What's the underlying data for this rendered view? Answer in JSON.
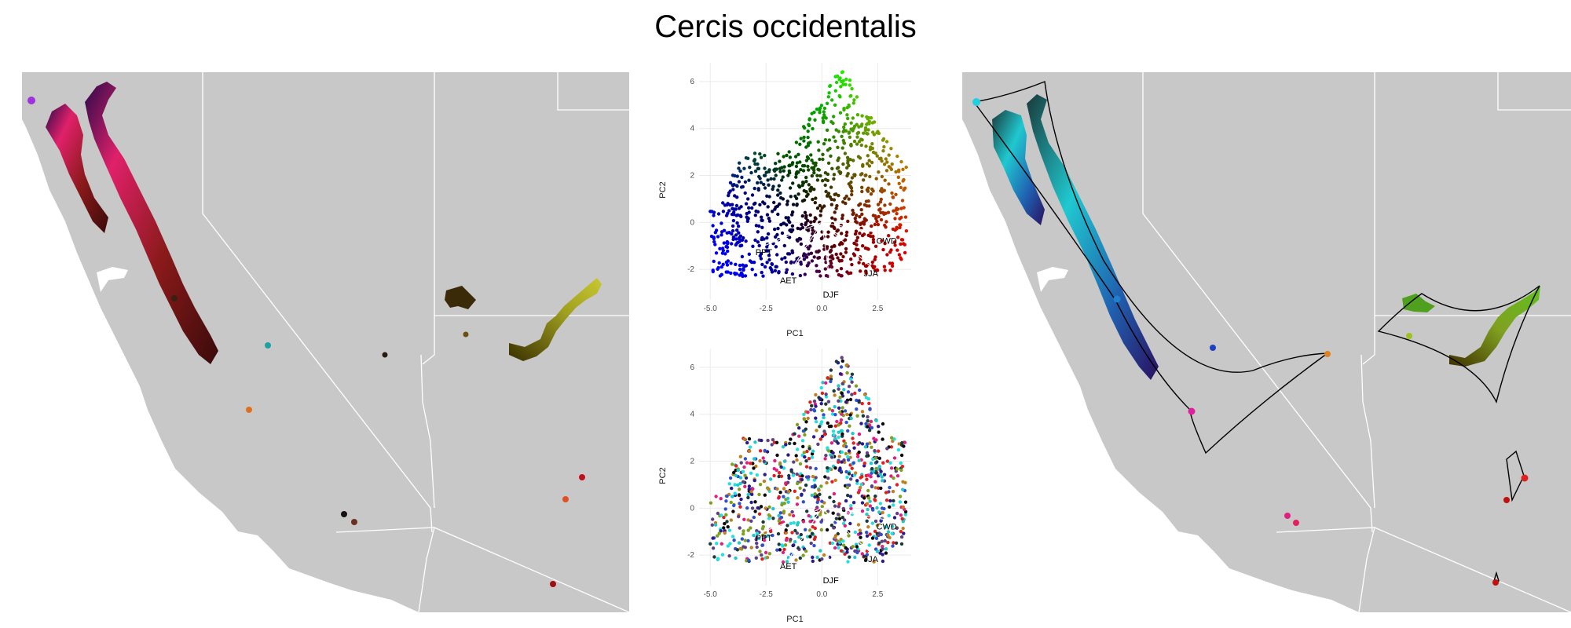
{
  "title": "Cercis occidentalis",
  "chart_data": [
    {
      "type": "map",
      "panel": "left",
      "description": "Range of Cercis occidentalis colored by climate-PCA position",
      "colors": {
        "land": "#c8c8c8",
        "borders": "#ffffff",
        "water": "#ffffff"
      }
    },
    {
      "type": "scatter",
      "panel": "center-top",
      "xlabel": "PC1",
      "ylabel": "PC2",
      "xlim": [
        -5.5,
        4.0
      ],
      "ylim": [
        -3.3,
        6.8
      ],
      "xticks": [
        "-5.0",
        "-2.5",
        "0.0",
        "2.5"
      ],
      "yticks": [
        "-2",
        "0",
        "2",
        "4",
        "6"
      ],
      "xtick_values": [
        -5.0,
        -2.5,
        0.0,
        2.5
      ],
      "ytick_values": [
        -2,
        0,
        2,
        4,
        6
      ],
      "grid": true,
      "loadings": [
        {
          "name": "PPT",
          "x": -2.6,
          "y": -1.0
        },
        {
          "name": "AET",
          "x": -1.5,
          "y": -2.2
        },
        {
          "name": "DJF",
          "x": 0.4,
          "y": -2.8
        },
        {
          "name": "JJA",
          "x": 2.2,
          "y": -1.9
        },
        {
          "name": "CWD",
          "x": 2.9,
          "y": -0.5
        }
      ]
    },
    {
      "type": "scatter",
      "panel": "center-bottom",
      "xlabel": "PC1",
      "ylabel": "PC2",
      "xlim": [
        -5.5,
        4.0
      ],
      "ylim": [
        -3.3,
        6.8
      ],
      "xticks": [
        "-5.0",
        "-2.5",
        "0.0",
        "2.5"
      ],
      "yticks": [
        "-2",
        "0",
        "2",
        "4",
        "6"
      ],
      "xtick_values": [
        -5.0,
        -2.5,
        0.0,
        2.5
      ],
      "ytick_values": [
        -2,
        0,
        2,
        4,
        6
      ],
      "grid": true,
      "loadings": [
        {
          "name": "PPT",
          "x": -2.6,
          "y": -1.0
        },
        {
          "name": "AET",
          "x": -1.5,
          "y": -2.2
        },
        {
          "name": "DJF",
          "x": 0.4,
          "y": -2.8
        },
        {
          "name": "JJA",
          "x": 2.2,
          "y": -1.9
        },
        {
          "name": "CWD",
          "x": 2.9,
          "y": -0.5
        }
      ]
    },
    {
      "type": "map",
      "panel": "right",
      "description": "Range clusters with connecting hull outlines",
      "colors": {
        "land": "#c8c8c8",
        "borders": "#ffffff",
        "outline": "#000000"
      }
    }
  ]
}
